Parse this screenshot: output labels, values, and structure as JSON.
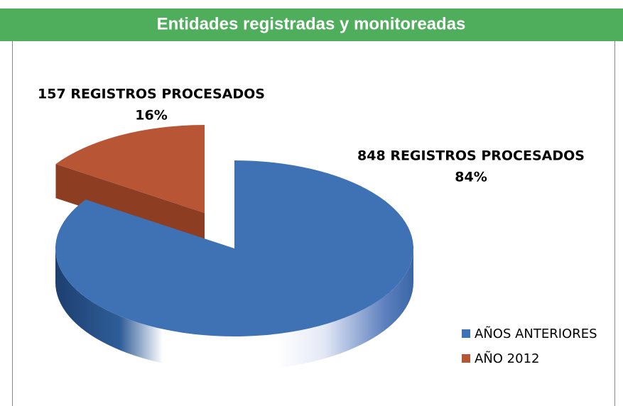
{
  "chart_data": {
    "type": "pie",
    "title": "Entidades registradas y monitoreadas",
    "categories": [
      "AÑOS ANTERIORES",
      "AÑO 2012"
    ],
    "values": [
      848,
      157
    ],
    "value_labels": [
      "848 REGISTROS PROCESADOS",
      "157 REGISTROS PROCESADOS"
    ],
    "percentages": [
      {
        "value": 84,
        "label": "84%"
      },
      {
        "value": 16,
        "label": "16%"
      }
    ],
    "colors": [
      "#3f72b4",
      "#b85535"
    ],
    "legend": "right"
  }
}
